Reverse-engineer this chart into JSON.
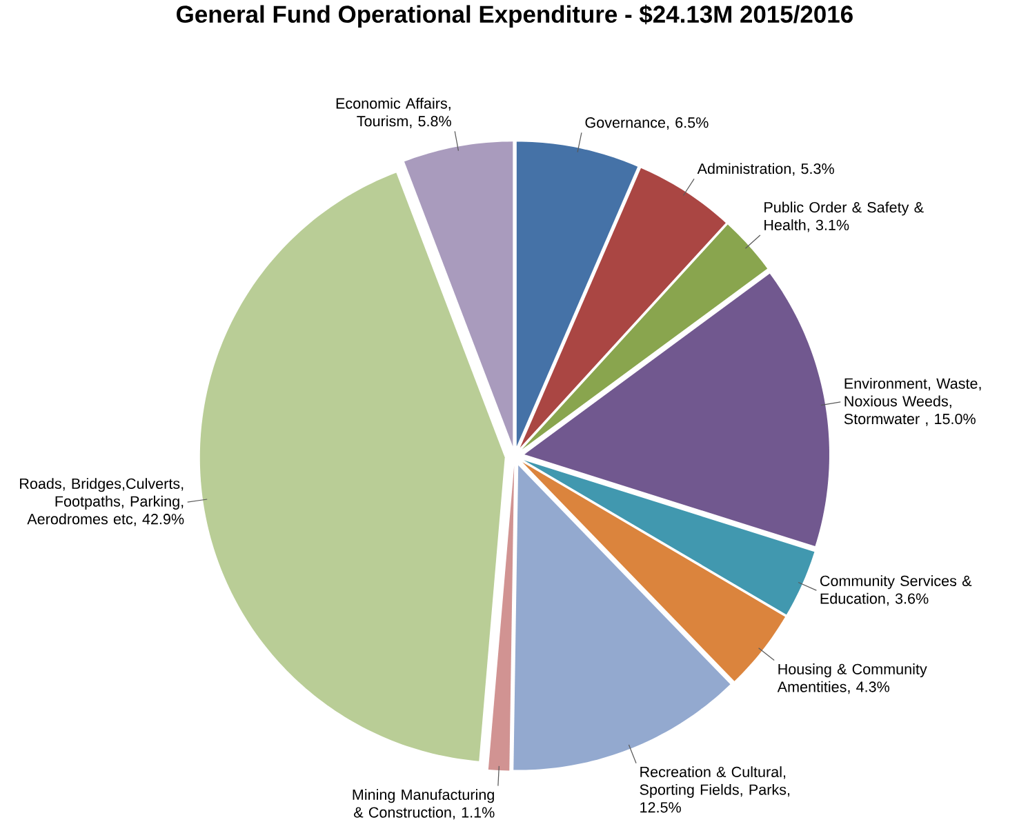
{
  "chart_data": {
    "type": "pie",
    "title": "General Fund Operational Expenditure - $24.13M 2015/2016",
    "categories": [
      "Governance, 6.5%",
      "Administration, 5.3%",
      "Public Order & Safety & Health, 3.1%",
      "Environment, Waste, Noxious Weeds, Stormwater , 15.0%",
      "Community Services & Education, 3.6%",
      "Housing & Community Amentities, 4.3%",
      "Recreation & Cultural, Sporting Fields, Parks, 12.5%",
      "Mining Manufacturing & Construction, 1.1%",
      "Roads, Bridges,Culverts, Footpaths, Parking, Aerodromes etc, 42.9%",
      "Economic Affairs, Tourism, 5.8%"
    ],
    "values": [
      6.5,
      5.3,
      3.1,
      15.0,
      3.6,
      4.3,
      12.5,
      1.1,
      42.9,
      5.8
    ],
    "colors": [
      "#4572a7",
      "#aa4643",
      "#89a54e",
      "#71588f",
      "#4198af",
      "#db843d",
      "#93a9cf",
      "#d19392",
      "#b9cd96",
      "#a99bbd"
    ]
  }
}
